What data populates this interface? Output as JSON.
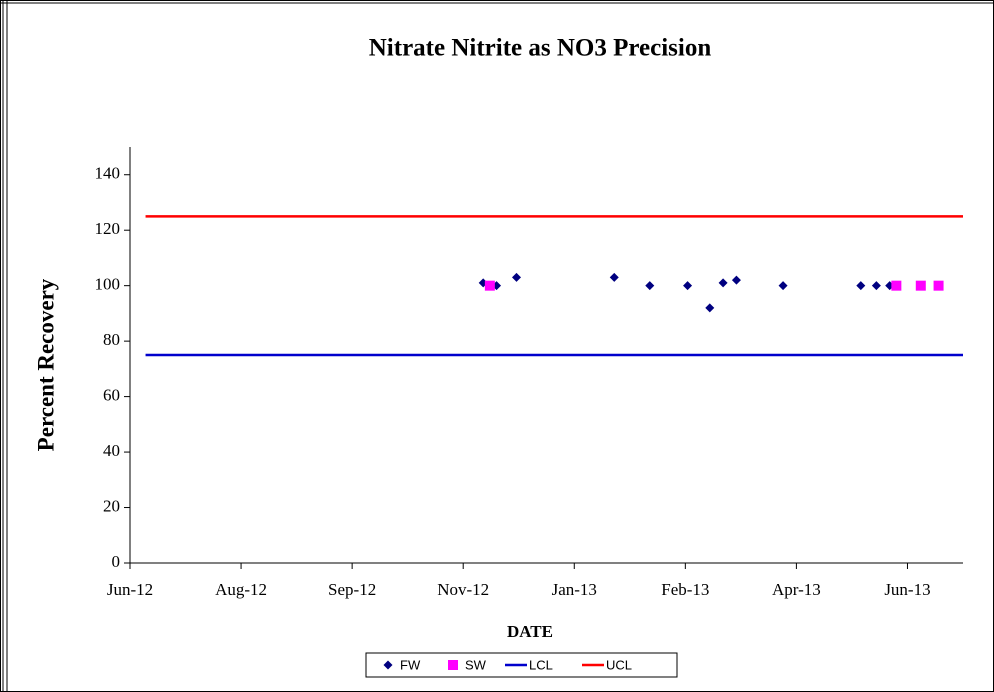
{
  "chart_data": {
    "type": "scatter",
    "title": "Nitrate Nitrite as NO3 Precision",
    "x_label": "DATE",
    "y_label": "Percent Recovery",
    "xlim": [
      41080,
      41455
    ],
    "xticks": [
      {
        "value": 41080,
        "label": "Jun-12"
      },
      {
        "value": 41130,
        "label": "Aug-12"
      },
      {
        "value": 41180,
        "label": "Sep-12"
      },
      {
        "value": 41230,
        "label": "Nov-12"
      },
      {
        "value": 41280,
        "label": "Jan-13"
      },
      {
        "value": 41330,
        "label": "Feb-13"
      },
      {
        "value": 41380,
        "label": "Apr-13"
      },
      {
        "value": 41430,
        "label": "Jun-13"
      }
    ],
    "ylim": [
      0,
      150
    ],
    "yticks": [
      0,
      20,
      40,
      60,
      80,
      100,
      120,
      140
    ],
    "series": [
      {
        "name": "FW",
        "color": "#000080",
        "marker": "diamond",
        "x": [
          41239,
          41245,
          41254,
          41298,
          41314,
          41331,
          41341,
          41347,
          41353,
          41374,
          41409,
          41416,
          41422,
          41444
        ],
        "values": [
          101,
          100,
          103,
          103,
          100,
          100,
          92,
          101,
          102,
          100,
          100,
          100,
          100,
          100
        ]
      },
      {
        "name": "SW",
        "color": "#ff00ff",
        "marker": "square",
        "x": [
          41242,
          41425,
          41436,
          41444
        ],
        "values": [
          100,
          100,
          100,
          100
        ]
      },
      {
        "name": "LCL",
        "color": "#0000cc",
        "marker": "line",
        "x": [
          41087,
          41455
        ],
        "values": [
          75,
          75
        ]
      },
      {
        "name": "UCL",
        "color": "#ff0000",
        "marker": "line",
        "x": [
          41087,
          41455
        ],
        "values": [
          125,
          125
        ]
      }
    ]
  }
}
